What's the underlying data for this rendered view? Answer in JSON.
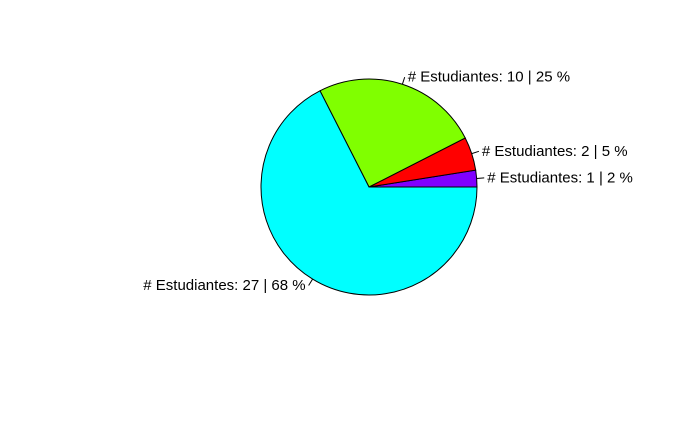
{
  "chart_data": {
    "type": "pie",
    "title": "",
    "direction": "counterclockwise",
    "start_angle_deg": 0,
    "slices": [
      {
        "value": 1,
        "label": "# Estudiantes: 1 | 2 %",
        "color": "#8000FF"
      },
      {
        "value": 2,
        "label": "# Estudiantes: 2 | 5 %",
        "color": "#FF0000"
      },
      {
        "value": 10,
        "label": "# Estudiantes: 10 | 25 %",
        "color": "#80FF00"
      },
      {
        "value": 27,
        "label": "# Estudiantes: 27 | 68 %",
        "color": "#00FFFF"
      }
    ]
  }
}
